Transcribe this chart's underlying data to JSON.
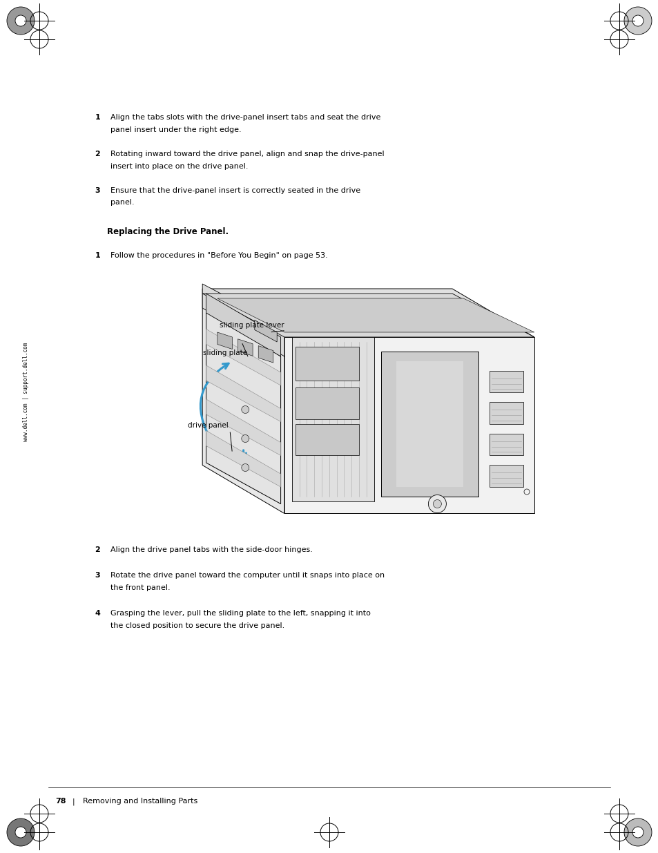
{
  "page_width": 9.54,
  "page_height": 12.35,
  "bg_color": "#ffffff",
  "sidebar_text": "www.dell.com | support.dell.com",
  "items_top": [
    {
      "num": "1",
      "text": "Align the tabs slots with the drive-panel insert tabs and seat the drive panel insert under the right edge."
    },
    {
      "num": "2",
      "text": "Rotating inward toward the drive panel, align and snap the drive-panel insert into place on the drive panel."
    },
    {
      "num": "3",
      "text": "Ensure that the drive-panel insert is correctly seated in the drive panel."
    }
  ],
  "section_title": "Replacing the Drive Panel.",
  "section_step1": "Follow the procedures in \"Before You Begin\" on page 53.",
  "items_bottom": [
    {
      "num": "2",
      "text": "Align the drive panel tabs with the side-door hinges."
    },
    {
      "num": "3",
      "text": "Rotate the drive panel toward the computer until it snaps into place on the front panel."
    },
    {
      "num": "4",
      "text": "Grasping the lever, pull the sliding plate to the left, snapping it into the closed position to secure the drive panel."
    }
  ],
  "footer_page": "78",
  "footer_text": "Removing and Installing Parts",
  "label_sliding_plate_lever": "sliding plate lever",
  "label_sliding_plate": "sliding plate",
  "label_drive_panel": "drive panel",
  "arrow_color": "#3399cc",
  "line_color": "#000000"
}
